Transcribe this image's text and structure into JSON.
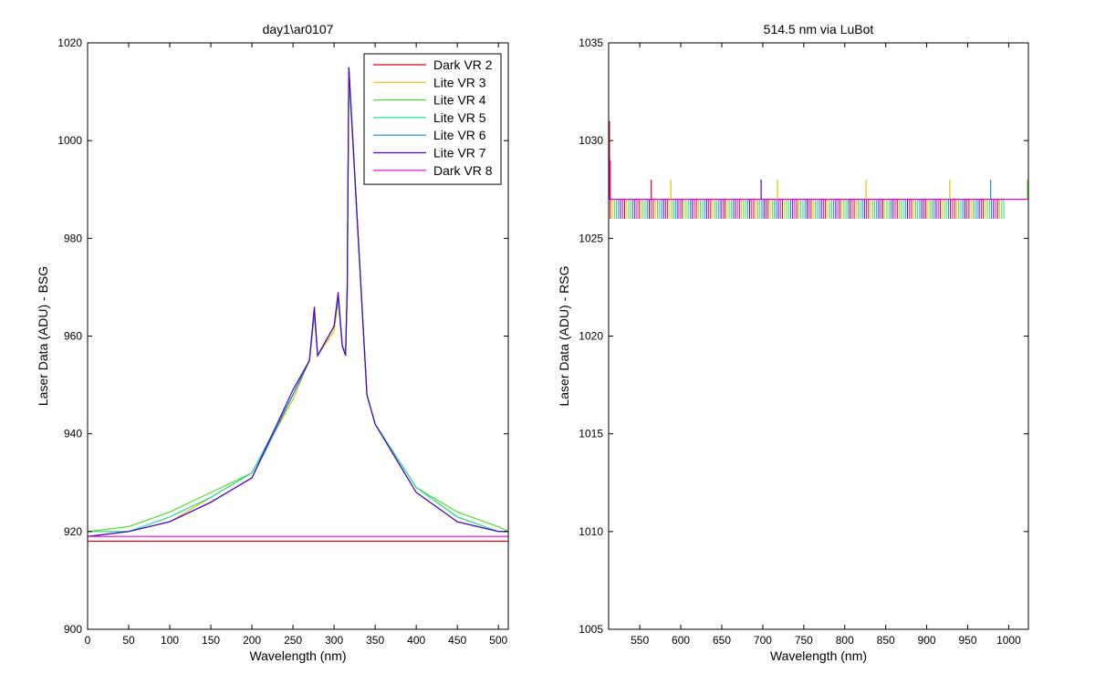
{
  "chart_data": [
    {
      "type": "line",
      "title": "day1\\ar0107",
      "xlabel": "Wavelength (nm)",
      "ylabel": "Laser Data (ADU) - BSG",
      "xlim": [
        0,
        512
      ],
      "ylim": [
        900,
        1020
      ],
      "xticks": [
        0,
        50,
        100,
        150,
        200,
        250,
        300,
        350,
        400,
        450,
        500
      ],
      "yticks": [
        900,
        920,
        940,
        960,
        980,
        1000,
        1020
      ],
      "legend_position": "top-right",
      "series": [
        {
          "name": "Dark VR 2",
          "color": "#e6001a",
          "x": [
            0,
            50,
            100,
            150,
            200,
            250,
            300,
            350,
            400,
            450,
            500,
            512
          ],
          "y": [
            918,
            918,
            918,
            918,
            918,
            918,
            918,
            918,
            918,
            918,
            918,
            918
          ]
        },
        {
          "name": "Lite VR 3",
          "color": "#f0c000",
          "x": [
            0,
            50,
            100,
            150,
            200,
            250,
            270,
            276,
            280,
            300,
            305,
            310,
            314,
            316,
            318,
            340,
            350,
            400,
            450,
            500,
            512
          ],
          "y": [
            920,
            920,
            922,
            927,
            932,
            947,
            955,
            964,
            956,
            961,
            967,
            958,
            957,
            968,
            1014,
            948,
            942,
            929,
            923,
            920,
            920
          ]
        },
        {
          "name": "Lite VR 4",
          "color": "#55dd33",
          "x": [
            0,
            50,
            100,
            150,
            200,
            250,
            270,
            276,
            280,
            300,
            305,
            310,
            314,
            316,
            318,
            340,
            350,
            400,
            450,
            500,
            512
          ],
          "y": [
            920,
            921,
            924,
            928,
            932,
            948,
            955,
            965,
            956,
            962,
            968,
            958,
            956,
            969,
            1014,
            948,
            942,
            929,
            924,
            921,
            920
          ]
        },
        {
          "name": "Lite VR 5",
          "color": "#22dd99",
          "x": [
            0,
            50,
            100,
            150,
            200,
            250,
            270,
            276,
            280,
            300,
            305,
            310,
            314,
            316,
            318,
            340,
            350,
            400,
            450,
            500,
            512
          ],
          "y": [
            920,
            920,
            923,
            927,
            932,
            948,
            955,
            965,
            956,
            962,
            968,
            958,
            956,
            969,
            1015,
            948,
            942,
            929,
            923,
            920,
            920
          ]
        },
        {
          "name": "Lite VR 6",
          "color": "#1a88dd",
          "x": [
            0,
            50,
            100,
            150,
            200,
            250,
            270,
            276,
            280,
            300,
            305,
            310,
            314,
            316,
            318,
            340,
            350,
            400,
            450,
            500,
            512
          ],
          "y": [
            919,
            920,
            922,
            926,
            931,
            948,
            955,
            965,
            956,
            962,
            968,
            958,
            956,
            969,
            1015,
            948,
            942,
            928,
            922,
            920,
            920
          ]
        },
        {
          "name": "Lite VR 7",
          "color": "#5500cc",
          "x": [
            0,
            50,
            100,
            150,
            200,
            250,
            270,
            276,
            280,
            300,
            305,
            310,
            314,
            316,
            318,
            340,
            350,
            400,
            450,
            500,
            512
          ],
          "y": [
            919,
            920,
            922,
            926,
            931,
            949,
            955,
            966,
            956,
            962,
            969,
            958,
            956,
            970,
            1015,
            948,
            942,
            928,
            922,
            920,
            920
          ]
        },
        {
          "name": "Dark VR 8",
          "color": "#ee00cc",
          "x": [
            0,
            50,
            100,
            150,
            200,
            250,
            300,
            350,
            400,
            450,
            500,
            512
          ],
          "y": [
            919,
            919,
            919,
            919,
            919,
            919,
            919,
            919,
            919,
            919,
            919,
            919
          ]
        }
      ]
    },
    {
      "type": "line",
      "title": "514.5 nm via LuBot",
      "xlabel": "Wavelength (nm)",
      "ylabel": "Laser Data (ADU) - RSG",
      "xlim": [
        512,
        1024
      ],
      "ylim": [
        1005,
        1035
      ],
      "xticks": [
        550,
        600,
        650,
        700,
        750,
        800,
        850,
        900,
        950,
        1000
      ],
      "yticks": [
        1005,
        1010,
        1015,
        1020,
        1025,
        1030,
        1035
      ],
      "legend": false,
      "baseline": 1027,
      "dip_level": 1026,
      "dip_range": [
        514,
        996
      ],
      "series": [
        {
          "name": "Dark VR 2",
          "color": "#e6001a",
          "spikes": [
            [
              513,
              1031
            ],
            [
              564,
              1028
            ]
          ]
        },
        {
          "name": "Lite VR 3",
          "color": "#f0c000",
          "spikes": [
            [
              588,
              1028
            ],
            [
              718,
              1028
            ],
            [
              826,
              1028
            ],
            [
              928,
              1028
            ]
          ]
        },
        {
          "name": "Lite VR 4",
          "color": "#55dd33",
          "spikes": [
            [
              1023,
              1028
            ]
          ]
        },
        {
          "name": "Lite VR 5",
          "color": "#22dd99",
          "spikes": []
        },
        {
          "name": "Lite VR 6",
          "color": "#1a88dd",
          "spikes": [
            [
              978,
              1028
            ]
          ]
        },
        {
          "name": "Lite VR 7",
          "color": "#5500cc",
          "spikes": [
            [
              698,
              1028
            ]
          ]
        },
        {
          "name": "Dark VR 8",
          "color": "#ee00cc",
          "spikes": [
            [
              514,
              1029
            ]
          ]
        }
      ]
    }
  ]
}
